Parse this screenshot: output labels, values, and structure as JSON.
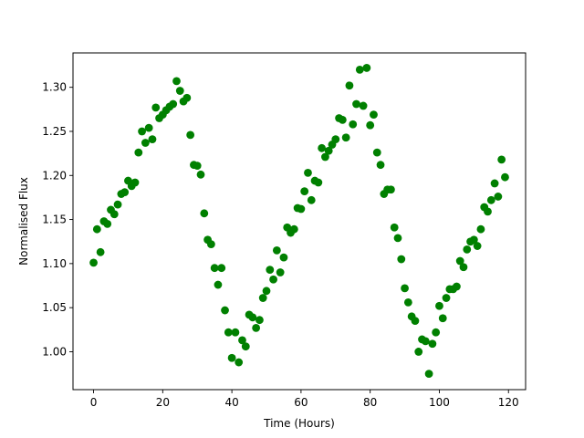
{
  "chart_data": {
    "type": "scatter",
    "title": "",
    "xlabel": "Time (Hours)",
    "ylabel": "Normalised Flux",
    "xlim": [
      -5.95,
      124.95
    ],
    "ylim": [
      0.957,
      1.339
    ],
    "xticks": [
      0,
      20,
      40,
      60,
      80,
      100,
      120
    ],
    "yticks": [
      1.0,
      1.05,
      1.1,
      1.15,
      1.2,
      1.25,
      1.3
    ],
    "xtick_labels": [
      "0",
      "20",
      "40",
      "60",
      "80",
      "100",
      "120"
    ],
    "ytick_labels": [
      "1.00",
      "1.05",
      "1.10",
      "1.15",
      "1.20",
      "1.25",
      "1.30"
    ],
    "grid": false,
    "legend": "none",
    "marker_color": "#008000",
    "series": [
      {
        "x": [
          0,
          1,
          2,
          3,
          4,
          5,
          6,
          7,
          8,
          9,
          10,
          11,
          12,
          13,
          14,
          15,
          16,
          17,
          18,
          19,
          20,
          21,
          22,
          23,
          24,
          25,
          26,
          27,
          28,
          29,
          30,
          31,
          32,
          33,
          34,
          35,
          36,
          37,
          38,
          39,
          40,
          41,
          42,
          43,
          44,
          45,
          46,
          47,
          48,
          49,
          50,
          51,
          52,
          53,
          54,
          55,
          56,
          57,
          58,
          59,
          60,
          61,
          62,
          63,
          64,
          65,
          66,
          67,
          68,
          69,
          70,
          71,
          72,
          73,
          74,
          75,
          76,
          77,
          78,
          79,
          80,
          81,
          82,
          83,
          84,
          85,
          86,
          87,
          88,
          89,
          90,
          91,
          92,
          93,
          94,
          95,
          96,
          97,
          98,
          99,
          100,
          101,
          102,
          103,
          104,
          105,
          106,
          107,
          108,
          109,
          110,
          111,
          112,
          113,
          114,
          115,
          116,
          117,
          118,
          119
        ],
        "y": [
          1.101,
          1.139,
          1.113,
          1.148,
          1.145,
          1.161,
          1.156,
          1.167,
          1.179,
          1.181,
          1.194,
          1.188,
          1.192,
          1.226,
          1.25,
          1.237,
          1.254,
          1.241,
          1.277,
          1.265,
          1.269,
          1.274,
          1.278,
          1.281,
          1.307,
          1.296,
          1.284,
          1.288,
          1.246,
          1.212,
          1.211,
          1.201,
          1.157,
          1.127,
          1.122,
          1.095,
          1.076,
          1.095,
          1.047,
          1.022,
          0.993,
          1.022,
          0.988,
          1.013,
          1.006,
          1.042,
          1.039,
          1.027,
          1.036,
          1.061,
          1.069,
          1.093,
          1.082,
          1.115,
          1.09,
          1.107,
          1.141,
          1.135,
          1.139,
          1.163,
          1.162,
          1.182,
          1.203,
          1.172,
          1.194,
          1.192,
          1.231,
          1.221,
          1.228,
          1.235,
          1.241,
          1.265,
          1.263,
          1.243,
          1.302,
          1.258,
          1.281,
          1.32,
          1.279,
          1.322,
          1.257,
          1.269,
          1.226,
          1.212,
          1.179,
          1.184,
          1.184,
          1.141,
          1.129,
          1.105,
          1.072,
          1.056,
          1.04,
          1.035,
          1.0,
          1.014,
          1.012,
          0.975,
          1.009,
          1.022,
          1.052,
          1.038,
          1.061,
          1.071,
          1.071,
          1.074,
          1.103,
          1.096,
          1.116,
          1.125,
          1.127,
          1.12,
          1.139,
          1.164,
          1.159,
          1.172,
          1.191,
          1.176,
          1.218,
          1.198
        ]
      }
    ]
  }
}
